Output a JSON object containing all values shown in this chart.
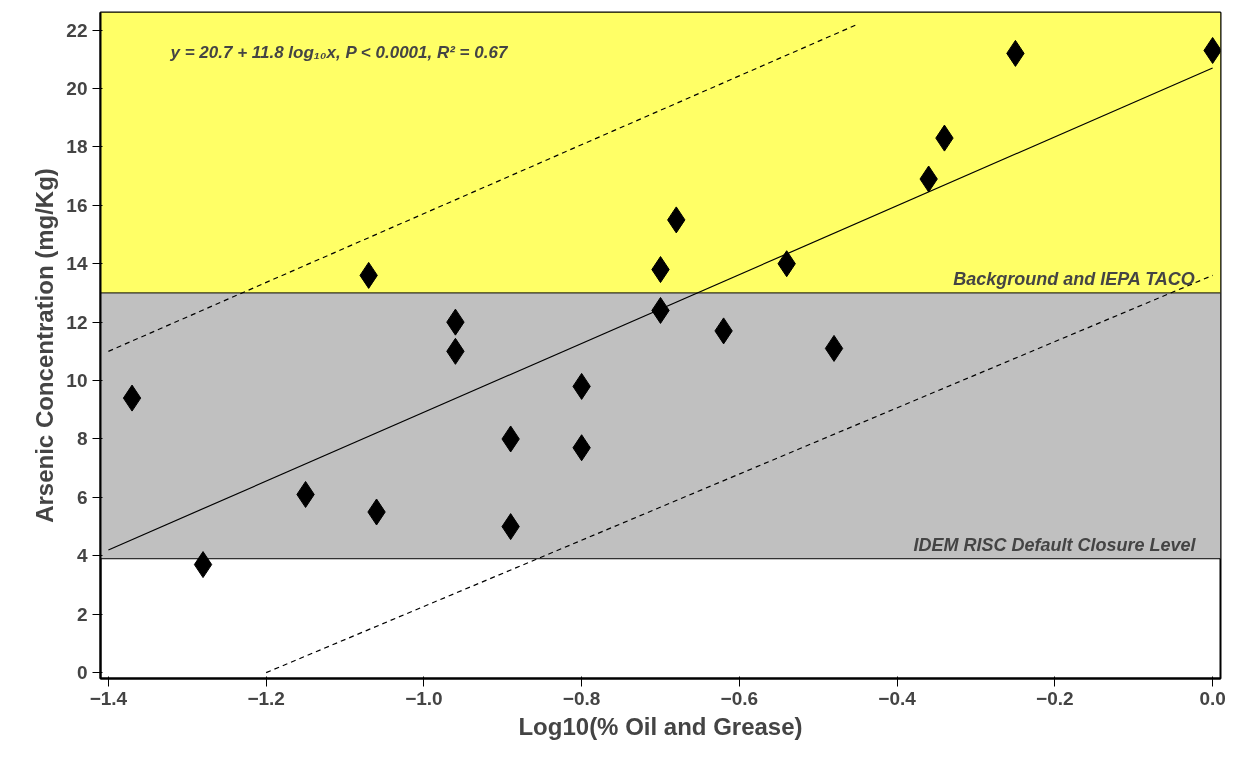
{
  "chart_data": {
    "type": "scatter",
    "xlabel": "Log10(% Oil and Grease)",
    "ylabel": "Arsenic Concentration (mg/Kg)",
    "annotations": [
      "y = 20.7 + 11.8 log₁₀x, P < 0.0001, R² = 0.67"
    ],
    "xlim": [
      -1.41,
      0.01
    ],
    "ylim": [
      -0.2,
      22.6
    ],
    "xticks": [
      {
        "value": -1.4,
        "label": "−1.4"
      },
      {
        "value": -1.2,
        "label": "−1.2"
      },
      {
        "value": -1.0,
        "label": "−1.0"
      },
      {
        "value": -0.8,
        "label": "−0.8"
      },
      {
        "value": -0.6,
        "label": "−0.6"
      },
      {
        "value": -0.4,
        "label": "−0.4"
      },
      {
        "value": -0.2,
        "label": "−0.2"
      },
      {
        "value": 0.0,
        "label": "0.0"
      }
    ],
    "yticks": [
      0,
      2,
      4,
      6,
      8,
      10,
      12,
      14,
      16,
      18,
      20,
      22
    ],
    "bands": [
      {
        "axis": "y",
        "from": 13,
        "to": 22.6,
        "color": "#ffff66"
      },
      {
        "axis": "y",
        "from": 3.9,
        "to": 13,
        "color": "#c0c0c0"
      }
    ],
    "ref_lines": [
      {
        "axis": "y",
        "value": 13,
        "label": "Background and IEPA TACO",
        "color": "#000000"
      },
      {
        "axis": "y",
        "value": 3.9,
        "label": "IDEM RISC Default Closure Level",
        "color": "#000000"
      }
    ],
    "series": [
      {
        "marker": "diamond",
        "color": "#000000",
        "x": [
          -1.37,
          -1.28,
          -1.15,
          -1.07,
          -1.06,
          -0.96,
          -0.96,
          -0.89,
          -0.89,
          -0.8,
          -0.8,
          -0.7,
          -0.7,
          -0.68,
          -0.62,
          -0.54,
          -0.48,
          -0.36,
          -0.34,
          -0.25,
          0.0
        ],
        "values": [
          9.4,
          3.7,
          6.1,
          13.6,
          5.5,
          12.0,
          11.0,
          8.0,
          5.0,
          9.8,
          7.7,
          13.8,
          12.4,
          15.5,
          11.7,
          14.0,
          11.1,
          16.9,
          18.3,
          21.2,
          21.3
        ]
      },
      {
        "type": "line",
        "marker": "none",
        "color": "#000000",
        "line_style": "solid",
        "x": [
          -1.4,
          0.0
        ],
        "values": [
          4.2,
          20.7
        ]
      },
      {
        "type": "line",
        "color": "#000000",
        "line_style": "dashed",
        "marker": "none",
        "x": [
          -1.4,
          -0.45
        ],
        "values": [
          11.0,
          22.2
        ]
      },
      {
        "type": "line",
        "color": "#000000",
        "line_style": "dashed",
        "marker": "none",
        "x": [
          -1.2,
          0.0
        ],
        "values": [
          0.0,
          13.6
        ]
      }
    ]
  }
}
